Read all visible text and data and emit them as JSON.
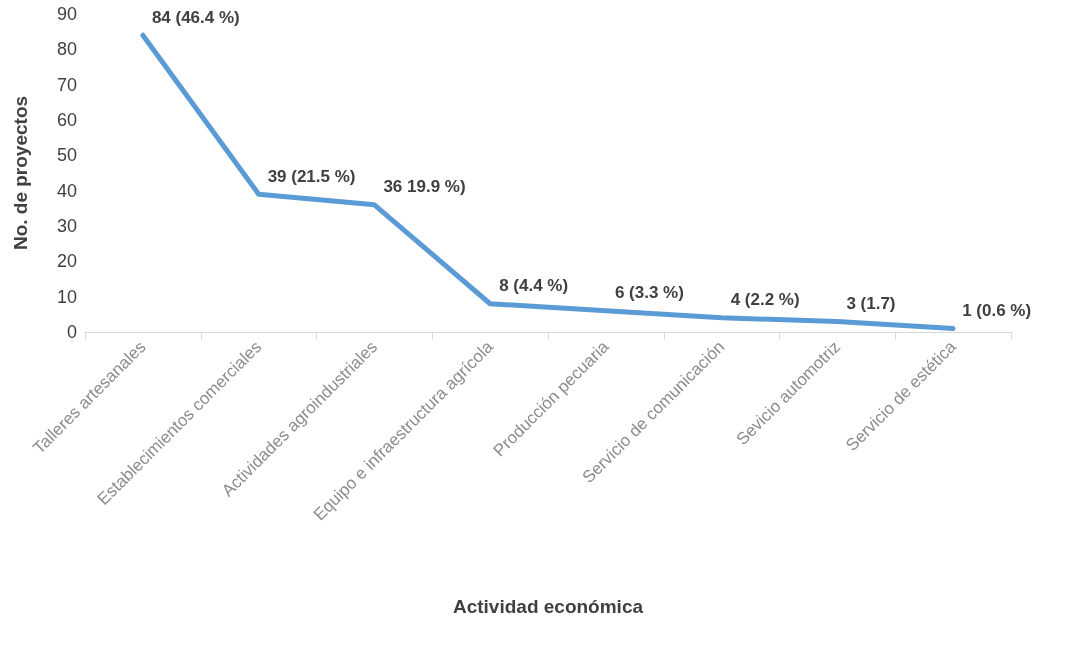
{
  "chart_data": {
    "type": "line",
    "xlabel": "Actividad económica",
    "ylabel": "No. de proyectos",
    "categories": [
      "Talleres artesanales",
      "Establecimientos comerciales",
      "Actividades agroindustriales",
      "Equipo e infraestructura agrícola",
      "Producción pecuaria",
      "Servicio de comunicación",
      "Sevicio automotriz",
      "Servicio de estética"
    ],
    "series": [
      {
        "color": "#5b9bd5",
        "values": [
          84,
          39,
          36,
          8,
          6,
          4,
          3,
          1
        ],
        "value_labels": [
          "84 (46.4 %)",
          "39 (21.5 %)",
          "36 19.9 %)",
          "8 (4.4 %)",
          "6 (3.3 %)",
          "4 (2.2 %)",
          "3 (1.7)",
          "1 (0.6 %)"
        ]
      }
    ],
    "ylim": [
      0,
      90
    ],
    "yticks": [
      0,
      10,
      20,
      30,
      40,
      50,
      60,
      70,
      80,
      90
    ],
    "grid": false,
    "marker": "none",
    "line_style": "solid"
  }
}
